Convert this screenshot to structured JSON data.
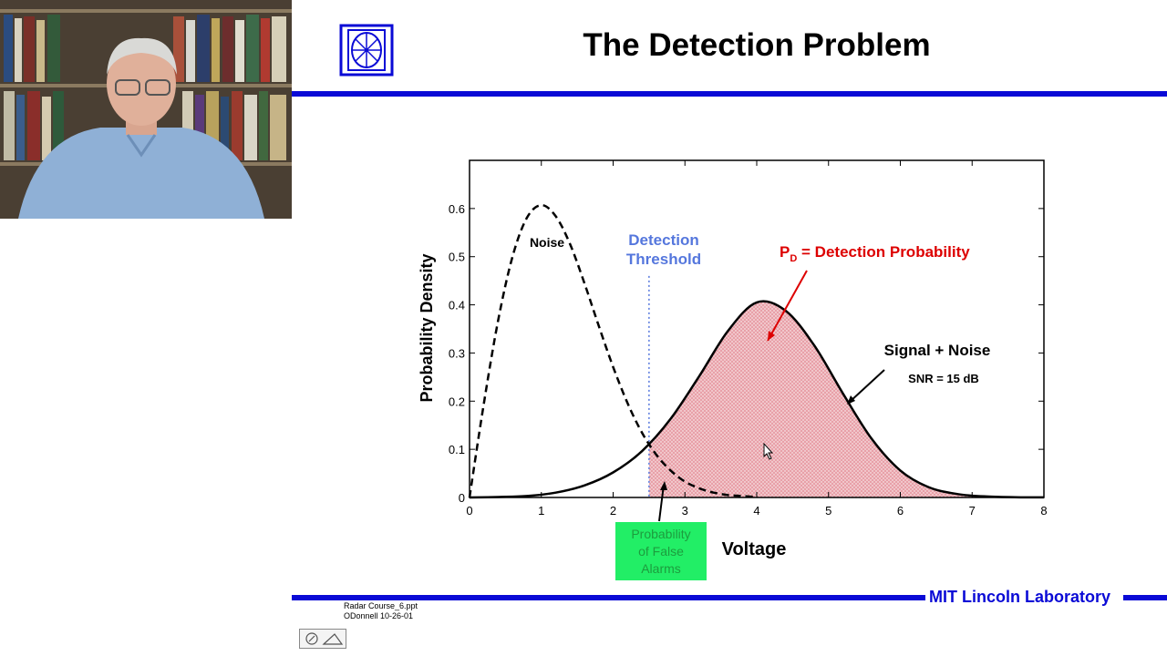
{
  "slide": {
    "title": "The Detection Problem",
    "footer_lab": "MIT Lincoln Laboratory",
    "footnote_line1": "Radar Course_6.ppt",
    "footnote_line2": "ODonnell 10-26-01",
    "accent_color": "#0a0ad6"
  },
  "toolbar": {
    "pen_icon": "pen-icon",
    "eraser_icon": "eraser-icon"
  },
  "chart_data": {
    "type": "line",
    "title": "",
    "xlabel": "Voltage",
    "ylabel": "Probability Density",
    "xlim": [
      0,
      8
    ],
    "ylim": [
      0,
      0.7
    ],
    "x_ticks": [
      "0",
      "1",
      "2",
      "3",
      "4",
      "5",
      "6",
      "7",
      "8"
    ],
    "y_ticks": [
      "0",
      "0.1",
      "0.2",
      "0.3",
      "0.4",
      "0.5",
      "0.6"
    ],
    "threshold": 2.5,
    "series": [
      {
        "name": "Noise",
        "style": "dashed",
        "x": [
          0,
          0.2,
          0.4,
          0.6,
          0.8,
          1.0,
          1.2,
          1.4,
          1.6,
          1.8,
          2.0,
          2.2,
          2.4,
          2.6,
          2.8,
          3.0,
          3.2,
          3.4,
          3.6,
          3.8,
          4.0
        ],
        "values": [
          0,
          0.196,
          0.369,
          0.501,
          0.581,
          0.607,
          0.584,
          0.526,
          0.445,
          0.356,
          0.271,
          0.196,
          0.135,
          0.089,
          0.056,
          0.033,
          0.019,
          0.01,
          0.005,
          0.003,
          0.001
        ]
      },
      {
        "name": "Signal + Noise",
        "style": "solid",
        "x": [
          0,
          0.4,
          0.8,
          1.2,
          1.6,
          2.0,
          2.4,
          2.8,
          3.2,
          3.6,
          4.0,
          4.4,
          4.8,
          5.2,
          5.6,
          6.0,
          6.4,
          6.8,
          7.2,
          7.6,
          8.0
        ],
        "values": [
          0,
          0.001,
          0.003,
          0.01,
          0.025,
          0.052,
          0.096,
          0.163,
          0.252,
          0.346,
          0.405,
          0.388,
          0.316,
          0.216,
          0.122,
          0.056,
          0.021,
          0.007,
          0.002,
          0.0005,
          0.0001
        ]
      }
    ],
    "annotations": {
      "noise_label": "Noise",
      "threshold_label_1": "Detection",
      "threshold_label_2": "Threshold",
      "pd_label_main": "P",
      "pd_label_sub": "D",
      "pd_label_rest": " = Detection Probability",
      "signal_label": "Signal + Noise",
      "snr_label": "SNR = 15 dB",
      "false_alarm_1": "Probability",
      "false_alarm_2": "of False",
      "false_alarm_3": "Alarms"
    },
    "colors": {
      "fill": "#e8a0a8",
      "threshold": "#5577dd",
      "pd": "#dd0000",
      "false_alarm_box": "#22ee66"
    }
  }
}
